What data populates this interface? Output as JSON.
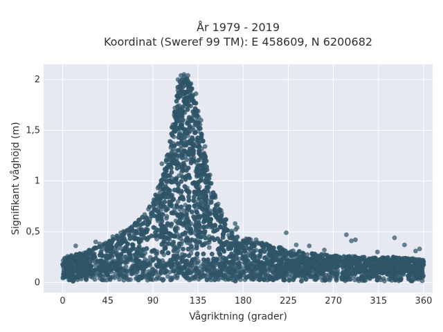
{
  "chart_data": {
    "type": "scatter",
    "title": "År 1979 - 2019",
    "subtitle": "Koordinat (Sweref 99 TM): E 458609, N 6200682",
    "xlabel": "Vågriktning (grader)",
    "ylabel": "Signifikant våghöjd (m)",
    "xlim": [
      -19,
      369
    ],
    "ylim": [
      -0.1,
      2.15
    ],
    "x_ticks": [
      0,
      45,
      90,
      135,
      180,
      225,
      270,
      315,
      360
    ],
    "x_tick_labels": [
      "0",
      "45",
      "90",
      "135",
      "180",
      "225",
      "270",
      "315",
      "360"
    ],
    "y_ticks": [
      0,
      0.5,
      1,
      1.5,
      2
    ],
    "y_tick_labels": [
      "0",
      "0,5",
      "1",
      "1,5",
      "2"
    ],
    "grid": true,
    "marker_color": "#2f5468",
    "background_color": "#e6e8f2",
    "grid_color": "#ffffff",
    "envelope": {
      "x": [
        0,
        15,
        30,
        45,
        60,
        75,
        90,
        100,
        105,
        110,
        115,
        120,
        125,
        130,
        135,
        140,
        145,
        150,
        160,
        170,
        180,
        195,
        210,
        225,
        240,
        255,
        270,
        285,
        300,
        315,
        330,
        345,
        360
      ],
      "y": [
        0.25,
        0.28,
        0.33,
        0.4,
        0.5,
        0.62,
        0.8,
        1.05,
        1.3,
        1.6,
        1.95,
        2.05,
        2.03,
        1.9,
        1.7,
        1.4,
        1.1,
        0.9,
        0.65,
        0.55,
        0.45,
        0.4,
        0.36,
        0.33,
        0.3,
        0.28,
        0.27,
        0.26,
        0.25,
        0.24,
        0.25,
        0.24,
        0.22
      ]
    },
    "outliers": [
      {
        "x": 82,
        "y": 0.59
      },
      {
        "x": 87,
        "y": 0.62
      },
      {
        "x": 92,
        "y": 0.81
      },
      {
        "x": 95,
        "y": 0.93
      },
      {
        "x": 99,
        "y": 1.17
      },
      {
        "x": 102,
        "y": 1.08
      },
      {
        "x": 107,
        "y": 1.39
      },
      {
        "x": 112,
        "y": 1.72
      },
      {
        "x": 115,
        "y": 2.0
      },
      {
        "x": 118,
        "y": 2.04
      },
      {
        "x": 121,
        "y": 2.05
      },
      {
        "x": 125,
        "y": 2.04
      },
      {
        "x": 128,
        "y": 1.96
      },
      {
        "x": 133,
        "y": 1.86
      },
      {
        "x": 138,
        "y": 1.6
      },
      {
        "x": 142,
        "y": 1.34
      },
      {
        "x": 147,
        "y": 1.06
      },
      {
        "x": 152,
        "y": 0.86
      },
      {
        "x": 158,
        "y": 0.71
      },
      {
        "x": 163,
        "y": 0.62
      },
      {
        "x": 172,
        "y": 0.58
      },
      {
        "x": 174,
        "y": 0.54
      },
      {
        "x": 183,
        "y": 0.43
      },
      {
        "x": 193,
        "y": 0.42
      },
      {
        "x": 203,
        "y": 0.38
      },
      {
        "x": 223,
        "y": 0.49
      },
      {
        "x": 233,
        "y": 0.37
      },
      {
        "x": 246,
        "y": 0.36
      },
      {
        "x": 261,
        "y": 0.32
      },
      {
        "x": 283,
        "y": 0.47
      },
      {
        "x": 288,
        "y": 0.41
      },
      {
        "x": 292,
        "y": 0.42
      },
      {
        "x": 314,
        "y": 0.3
      },
      {
        "x": 331,
        "y": 0.44
      },
      {
        "x": 341,
        "y": 0.37
      },
      {
        "x": 352,
        "y": 0.31
      },
      {
        "x": 356,
        "y": 0.33
      },
      {
        "x": 13,
        "y": 0.36
      },
      {
        "x": 33,
        "y": 0.4
      },
      {
        "x": 37,
        "y": 0.38
      },
      {
        "x": 50,
        "y": 0.45
      },
      {
        "x": 58,
        "y": 0.49
      },
      {
        "x": 66,
        "y": 0.52
      },
      {
        "x": 74,
        "y": 0.57
      }
    ],
    "point_count": 3800
  }
}
